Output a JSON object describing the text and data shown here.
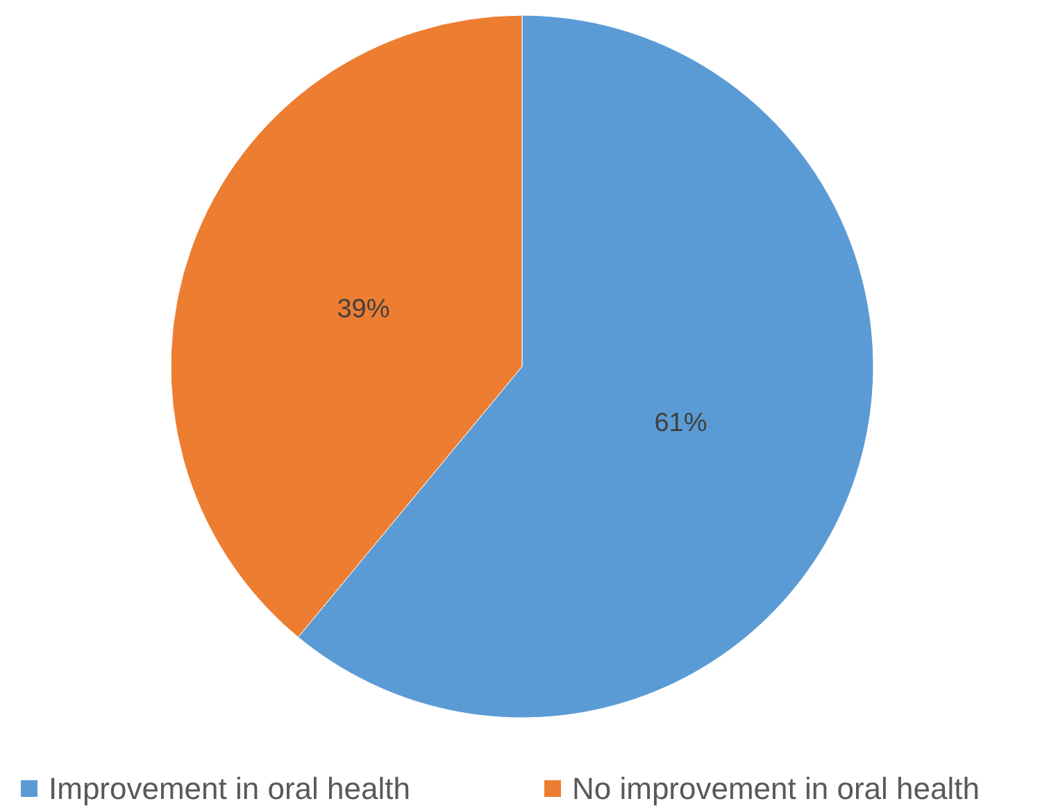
{
  "chart_data": {
    "type": "pie",
    "categories": [
      "Improvement in oral health",
      "No improvement in oral health"
    ],
    "values": [
      61,
      39
    ],
    "colors": [
      "#5b9bd5",
      "#ed7d31"
    ],
    "value_labels": [
      "61%",
      "39%"
    ],
    "legend": "bottom"
  }
}
